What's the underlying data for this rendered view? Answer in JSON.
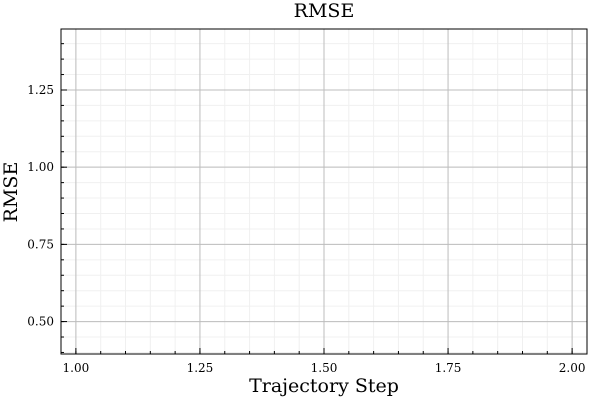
{
  "chart_data": {
    "type": "line",
    "title": "RMSE",
    "xlabel": "Trajectory Step",
    "ylabel": "RMSE",
    "xlim": [
      0.97,
      2.03
    ],
    "ylim": [
      0.395,
      1.4475
    ],
    "x_ticks": [
      1.0,
      1.25,
      1.5,
      1.75,
      2.0
    ],
    "x_tick_labels": [
      "1.00",
      "1.25",
      "1.50",
      "1.75",
      "2.00"
    ],
    "y_ticks": [
      0.5,
      0.75,
      1.0,
      1.25
    ],
    "y_tick_labels": [
      "0.50",
      "0.75",
      "1.00",
      "1.25"
    ],
    "x_minor_step": 0.05,
    "y_minor_step": 0.05,
    "grid": true,
    "minor_grid": true,
    "series": []
  },
  "colors": {
    "background": "#ffffff",
    "axis": "#000000",
    "major_grid": "#bdbdbd",
    "minor_grid": "#f0f0f0"
  }
}
